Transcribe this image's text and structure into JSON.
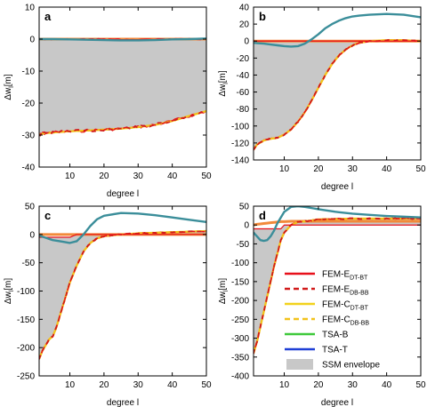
{
  "colors": {
    "envelope": "#c8c8c8",
    "fem_e_dt_bt": "#e8101a",
    "fem_e_db_bb": "#d11a1a",
    "fem_c_dt_bt": "#f2d21c",
    "fem_c_db_bb": "#f2c21c",
    "tsa_b": "#3ec93a",
    "tsa_t": "#1f3fd6",
    "teal": "#3b8e9a",
    "orange": "#f28a3a"
  },
  "legend": {
    "items": [
      {
        "label": "FEM-E",
        "sub": "DT-BT",
        "color_key": "fem_e_dt_bt",
        "style": "solid"
      },
      {
        "label": "FEM-E",
        "sub": "DB-BB",
        "color_key": "fem_e_db_bb",
        "style": "dashed"
      },
      {
        "label": "FEM-C",
        "sub": "DT-BT",
        "color_key": "fem_c_dt_bt",
        "style": "solid"
      },
      {
        "label": "FEM-C",
        "sub": "DB-BB",
        "color_key": "fem_c_db_bb",
        "style": "dashed"
      },
      {
        "label": "TSA-B",
        "sub": "",
        "color_key": "tsa_b",
        "style": "solid"
      },
      {
        "label": "TSA-T",
        "sub": "",
        "color_key": "tsa_t",
        "style": "solid"
      },
      {
        "label": "SSM envelope",
        "sub": "",
        "color_key": "envelope",
        "style": "patch"
      }
    ]
  },
  "chart_data": [
    {
      "panel": "a",
      "type": "line",
      "xlabel": "degree l",
      "ylabel": "Δw",
      "ylabel_sub": "l",
      "ylabel_unit": "[m]",
      "xlim": [
        1,
        50
      ],
      "ylim": [
        -40,
        10
      ],
      "xticks": [
        10,
        20,
        30,
        40,
        50
      ],
      "yticks": [
        -40,
        -30,
        -20,
        -10,
        0,
        10
      ],
      "x": [
        1,
        2,
        5,
        10,
        15,
        20,
        25,
        30,
        35,
        40,
        45,
        50
      ],
      "envelope_upper": [
        0,
        0,
        0,
        0,
        0,
        0,
        0,
        0,
        0,
        0,
        0,
        0
      ],
      "fem_lower": [
        -30,
        -29.5,
        -29.2,
        -28.8,
        -28.6,
        -28.3,
        -28,
        -27.5,
        -26.8,
        -25.6,
        -24,
        -22.5
      ],
      "teal": [
        0,
        0,
        0,
        -0.1,
        -0.2,
        -0.3,
        -0.4,
        -0.4,
        -0.3,
        -0.1,
        0,
        0.2
      ],
      "orange": [
        0,
        0,
        0,
        0,
        0,
        0,
        0,
        0,
        0,
        0,
        0,
        0
      ]
    },
    {
      "panel": "b",
      "type": "line",
      "xlabel": "degree l",
      "ylabel": "Δw",
      "ylabel_sub": "l",
      "ylabel_unit": "[m]",
      "xlim": [
        1,
        50
      ],
      "ylim": [
        -140,
        40
      ],
      "xticks": [
        10,
        20,
        30,
        40,
        50
      ],
      "yticks": [
        -140,
        -120,
        -100,
        -80,
        -60,
        -40,
        -20,
        0,
        20,
        40
      ],
      "x": [
        1,
        2,
        4,
        6,
        8,
        10,
        12,
        14,
        16,
        18,
        20,
        22,
        24,
        26,
        28,
        30,
        32,
        35,
        40,
        45,
        50
      ],
      "envelope_upper": [
        0,
        0,
        0,
        0,
        0,
        0,
        0,
        0,
        0,
        0,
        0,
        0,
        0,
        0,
        0,
        0,
        0,
        0,
        0,
        0,
        0
      ],
      "fem_lower": [
        -128,
        -122,
        -117,
        -115,
        -114,
        -110,
        -104,
        -95,
        -84,
        -70,
        -55,
        -40,
        -27,
        -17,
        -10,
        -5,
        -2,
        0,
        1,
        1,
        0
      ],
      "teal": [
        -2,
        -2.5,
        -3,
        -4,
        -5,
        -6,
        -6.5,
        -6,
        -3,
        2,
        8,
        15,
        20,
        24,
        27,
        29,
        30,
        31,
        32,
        31,
        28
      ],
      "orange": [
        0,
        0,
        0,
        0,
        0,
        0,
        0,
        0,
        0,
        0,
        0,
        0,
        0,
        0,
        0,
        0,
        0,
        0,
        0,
        0,
        0
      ]
    },
    {
      "panel": "c",
      "type": "line",
      "xlabel": "degree l",
      "ylabel": "Δw",
      "ylabel_sub": "l",
      "ylabel_unit": "[m]",
      "xlim": [
        1,
        50
      ],
      "ylim": [
        -250,
        50
      ],
      "xticks": [
        10,
        20,
        30,
        40,
        50
      ],
      "yticks": [
        -250,
        -200,
        -150,
        -100,
        -50,
        0,
        50
      ],
      "x": [
        1,
        2,
        3,
        4,
        5,
        6,
        8,
        10,
        12,
        14,
        16,
        18,
        20,
        25,
        30,
        35,
        40,
        45,
        50
      ],
      "envelope_upper": [
        -5,
        -5,
        -5,
        -5,
        -5,
        -5,
        -5,
        -5,
        0,
        0,
        0,
        0,
        0,
        0,
        0,
        0,
        0,
        0,
        0
      ],
      "fem_lower": [
        -220,
        -205,
        -195,
        -185,
        -180,
        -165,
        -125,
        -85,
        -55,
        -30,
        -15,
        -7,
        -3,
        0,
        2,
        3,
        4,
        5,
        6
      ],
      "teal": [
        -2,
        -4,
        -6,
        -8,
        -10,
        -11,
        -13,
        -15,
        -12,
        0,
        15,
        27,
        33,
        38,
        37,
        34,
        30,
        26,
        22
      ],
      "orange": [
        0,
        0,
        0,
        0,
        0,
        0,
        0,
        0,
        0,
        0,
        0,
        0,
        0,
        0,
        0,
        0,
        0,
        0,
        0
      ]
    },
    {
      "panel": "d",
      "type": "line",
      "xlabel": "degree l",
      "ylabel": "Δw",
      "ylabel_sub": "l",
      "ylabel_unit": "[m]",
      "xlim": [
        1,
        50
      ],
      "ylim": [
        -400,
        50
      ],
      "xticks": [
        10,
        20,
        30,
        40,
        50
      ],
      "yticks": [
        -400,
        -350,
        -300,
        -250,
        -200,
        -150,
        -100,
        -50,
        0,
        50
      ],
      "x": [
        1,
        2,
        3,
        4,
        5,
        6,
        7,
        8,
        9,
        10,
        12,
        14,
        16,
        18,
        20,
        25,
        30,
        35,
        40,
        45,
        50
      ],
      "envelope_upper": [
        -10,
        -10,
        -10,
        -10,
        -10,
        -10,
        -10,
        -10,
        -10,
        0,
        0,
        0,
        0,
        0,
        0,
        0,
        0,
        0,
        0,
        0,
        0
      ],
      "fem_lower": [
        -340,
        -310,
        -270,
        -230,
        -190,
        -150,
        -110,
        -75,
        -40,
        -20,
        0,
        8,
        10,
        12,
        15,
        16,
        17,
        17,
        17,
        17,
        17
      ],
      "teal": [
        -20,
        -30,
        -40,
        -42,
        -40,
        -30,
        -15,
        5,
        20,
        35,
        48,
        50,
        48,
        45,
        42,
        35,
        30,
        27,
        24,
        22,
        20
      ],
      "orange": [
        0,
        2,
        3,
        4,
        5,
        6,
        7,
        8,
        9,
        9,
        10,
        10,
        10,
        10,
        10,
        10,
        10,
        10,
        10,
        10,
        10
      ]
    }
  ]
}
